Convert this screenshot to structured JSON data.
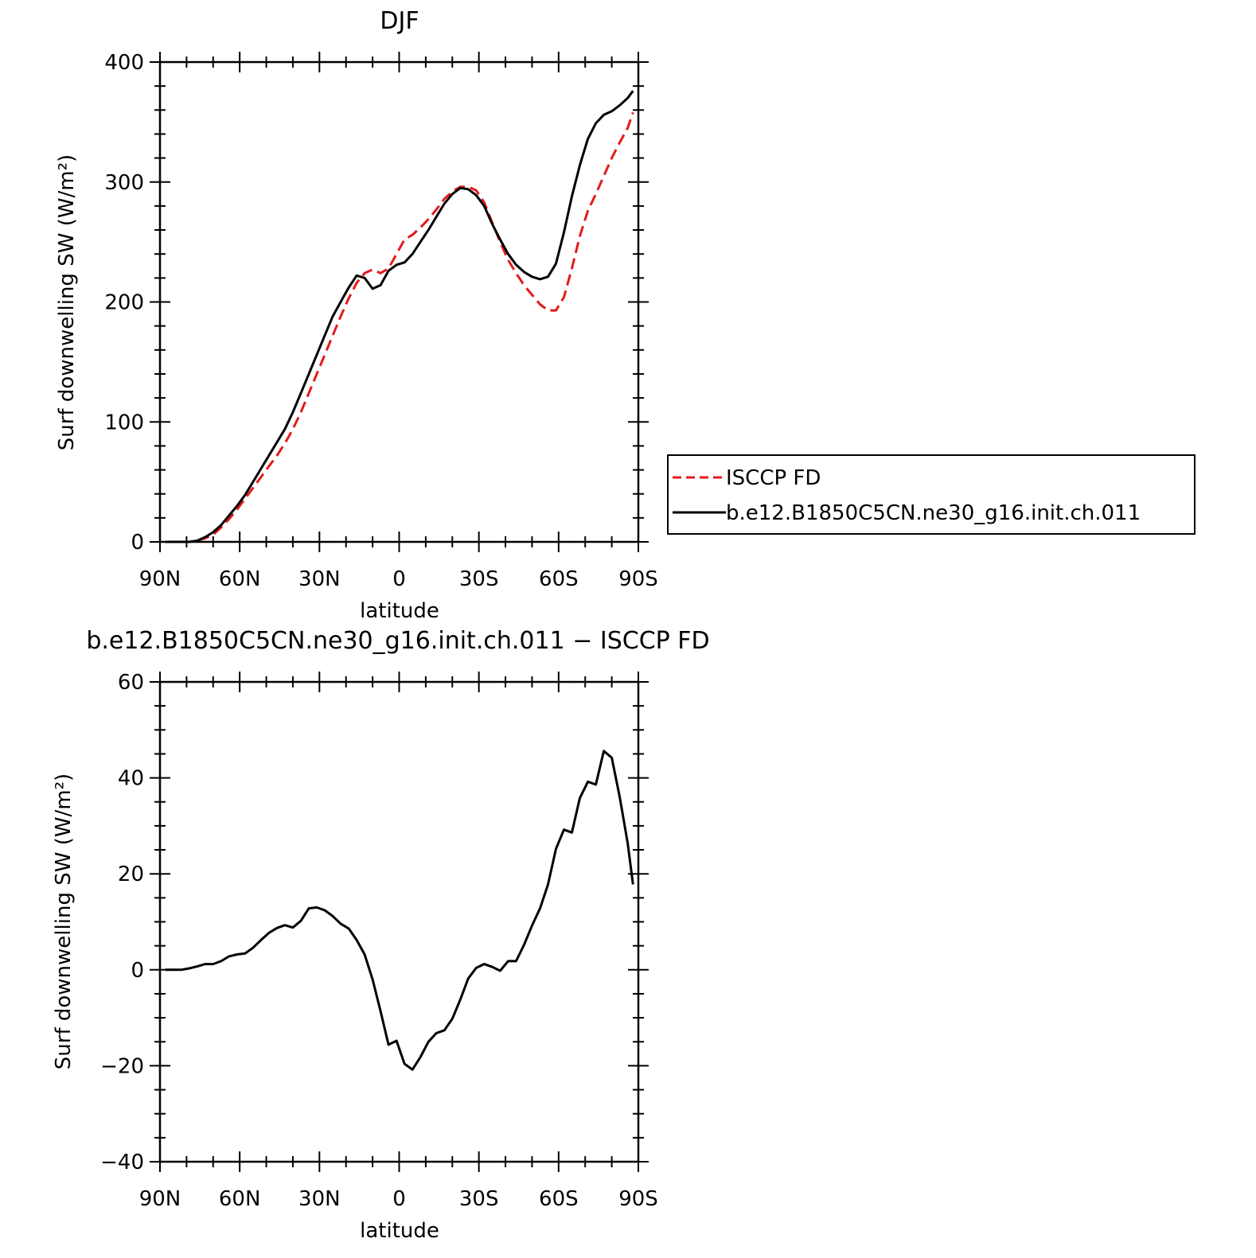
{
  "colors": {
    "model": "#000000",
    "obs": "#e41a1c",
    "axes": "#000000"
  },
  "chart_data": [
    {
      "type": "line",
      "title": "DJF",
      "xlabel": "latitude",
      "ylabel": "Surf downwelling SW (W/m²)",
      "x_tick_values": [
        -90,
        -60,
        -30,
        0,
        30,
        60,
        90
      ],
      "x_tick_labels": [
        "90N",
        "60N",
        "30N",
        "0",
        "30S",
        "60S",
        "90S"
      ],
      "y_ticks": [
        0,
        100,
        200,
        300,
        400
      ],
      "xlim": [
        -90,
        90
      ],
      "ylim": [
        0,
        400
      ],
      "legend": {
        "placement": "right"
      },
      "series": [
        {
          "name": "ISCCP FD",
          "style": "dashed",
          "color": "#e41a1c",
          "x": [
            -88,
            -85,
            -82,
            -79,
            -76,
            -73,
            -70,
            -67,
            -64,
            -61,
            -58,
            -55,
            -52,
            -49,
            -46,
            -43,
            -40,
            -37,
            -34,
            -31,
            -28,
            -25,
            -22,
            -19,
            -16,
            -13,
            -10,
            -7,
            -4,
            -1,
            2,
            5,
            8,
            11,
            14,
            17,
            20,
            23,
            26,
            29,
            32,
            35,
            38,
            41,
            44,
            47,
            50,
            53,
            56,
            59,
            62,
            65,
            68,
            71,
            74,
            77,
            80,
            83,
            86,
            88
          ],
          "y": [
            0,
            0,
            0,
            0,
            1,
            3,
            6,
            12,
            19,
            27,
            36,
            45,
            54,
            63,
            72,
            82,
            94,
            108,
            124,
            140,
            156,
            172,
            188,
            203,
            216,
            224,
            227,
            224,
            228,
            240,
            252,
            256,
            262,
            269,
            277,
            286,
            292,
            296,
            296,
            293,
            283,
            266,
            250,
            235,
            224,
            214,
            206,
            198,
            193,
            193,
            204,
            228,
            255,
            276,
            290,
            305,
            320,
            333,
            345,
            358
          ]
        },
        {
          "name": "b.e12.B1850C5CN.ne30_g16.init.ch.011",
          "style": "solid",
          "color": "#000000",
          "x": [
            -88,
            -85,
            -82,
            -79,
            -76,
            -73,
            -70,
            -67,
            -64,
            -61,
            -58,
            -55,
            -52,
            -49,
            -46,
            -43,
            -40,
            -37,
            -34,
            -31,
            -28,
            -25,
            -22,
            -19,
            -16,
            -13,
            -10,
            -7,
            -4,
            -1,
            2,
            5,
            8,
            11,
            14,
            17,
            20,
            23,
            26,
            29,
            32,
            35,
            38,
            41,
            44,
            47,
            50,
            53,
            56,
            59,
            62,
            65,
            68,
            71,
            74,
            77,
            80,
            83,
            86,
            88
          ],
          "y": [
            0,
            0,
            0,
            0,
            1,
            4,
            8,
            14,
            22,
            30,
            39,
            50,
            61,
            72,
            83,
            94,
            108,
            124,
            140,
            156,
            172,
            188,
            200,
            212,
            222,
            220,
            211,
            214,
            226,
            231,
            233,
            240,
            250,
            260,
            271,
            282,
            290,
            295,
            294,
            289,
            280,
            265,
            252,
            240,
            231,
            225,
            221,
            219,
            221,
            232,
            258,
            288,
            314,
            336,
            349,
            356,
            359,
            364,
            370,
            376
          ]
        }
      ]
    },
    {
      "type": "line",
      "title": "b.e12.B1850C5CN.ne30_g16.init.ch.011 − ISCCP FD",
      "xlabel": "latitude",
      "ylabel": "Surf downwelling SW (W/m²)",
      "x_tick_values": [
        -90,
        -60,
        -30,
        0,
        30,
        60,
        90
      ],
      "x_tick_labels": [
        "90N",
        "60N",
        "30N",
        "0",
        "30S",
        "60S",
        "90S"
      ],
      "y_ticks": [
        -40,
        -20,
        0,
        20,
        40,
        60
      ],
      "xlim": [
        -90,
        90
      ],
      "ylim": [
        -40,
        60
      ],
      "series": [
        {
          "style": "solid",
          "color": "#000000",
          "x": [
            -88,
            -85,
            -82,
            -79,
            -76,
            -73,
            -70,
            -67,
            -64,
            -61,
            -58,
            -55,
            -52,
            -49,
            -46,
            -43,
            -40,
            -37,
            -34,
            -31,
            -28,
            -25,
            -22,
            -19,
            -16,
            -13,
            -10,
            -7,
            -4,
            -1,
            2,
            5,
            8,
            11,
            14,
            17,
            20,
            23,
            26,
            29,
            32,
            35,
            38,
            41,
            44,
            47,
            50,
            53,
            56,
            59,
            62,
            65,
            68,
            71,
            74,
            77,
            80,
            83,
            86,
            88
          ],
          "y": [
            0,
            0,
            0,
            0.3,
            0.7,
            1.2,
            1.2,
            1.8,
            2.8,
            3.2,
            3.4,
            4.6,
            6.2,
            7.7,
            8.7,
            9.3,
            8.8,
            10.2,
            12.8,
            13.0,
            12.4,
            11.2,
            9.6,
            8.6,
            6.2,
            3.2,
            -2.0,
            -8.6,
            -15.6,
            -14.8,
            -19.6,
            -20.8,
            -18.2,
            -15.0,
            -13.2,
            -12.6,
            -10.2,
            -6.2,
            -1.8,
            0.4,
            1.2,
            0.6,
            -0.2,
            1.8,
            1.8,
            5.2,
            9.2,
            12.8,
            17.8,
            25.2,
            29.2,
            28.6,
            35.8,
            39.2,
            38.6,
            45.6,
            44.2,
            36.0,
            26.4,
            17.8
          ]
        }
      ]
    }
  ]
}
